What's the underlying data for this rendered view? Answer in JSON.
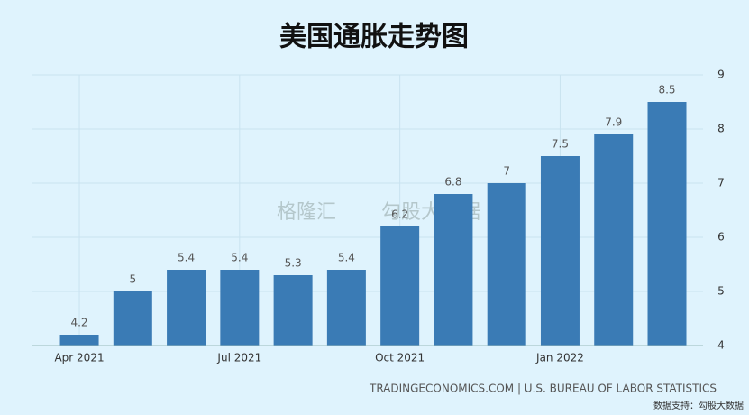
{
  "chart_data": {
    "type": "bar",
    "title": "美国通胀走势图",
    "categories": [
      "Apr 2021",
      null,
      null,
      "Jul 2021",
      null,
      null,
      "Oct 2021",
      null,
      null,
      "Jan 2022",
      null,
      null
    ],
    "values": [
      4.2,
      5,
      5.4,
      5.4,
      5.3,
      5.4,
      6.2,
      6.8,
      7,
      7.5,
      7.9,
      8.5
    ],
    "color": "#3a7bb5",
    "ylim": [
      4,
      9
    ],
    "yticks": [
      4,
      5,
      6,
      7,
      8,
      9
    ],
    "grid": true,
    "source": "TRADINGECONOMICS.COM | U.S. BUREAU OF LABOR STATISTICS",
    "footer": "数据支持：勾股大数据",
    "watermark": [
      "格隆汇",
      "勾股大数据"
    ]
  }
}
